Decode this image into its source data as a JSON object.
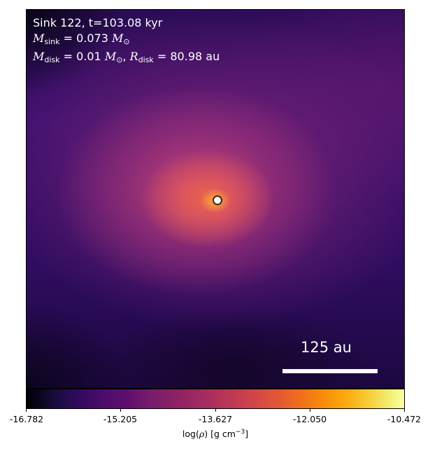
{
  "info": {
    "line1": "Sink 122, t=103.08 kyr",
    "m_symbol": "M",
    "sink_sub": "sink",
    "sink_value": " = 0.073 ",
    "solar_symbol": "M",
    "solar_sub": "⊙",
    "disk_sub": "disk",
    "disk_value": " = 0.01 ",
    "sep": ", ",
    "r_symbol": "R",
    "r_value": " = 80.98 au"
  },
  "scale_bar": {
    "label": "125 au"
  },
  "colorbar": {
    "colormap": "inferno",
    "ticks": [
      "-16.782",
      "-15.205",
      "-13.627",
      "-12.050",
      "-10.472"
    ],
    "label_pre": "log(",
    "label_rho": "ρ",
    "label_post": ") [g cm",
    "label_exp": "−3",
    "label_end": "]"
  },
  "colors": {
    "sink_marker_fill": "#ffffff",
    "sink_marker_edge": "#3a2a14",
    "text_on_map": "#ffffff"
  }
}
